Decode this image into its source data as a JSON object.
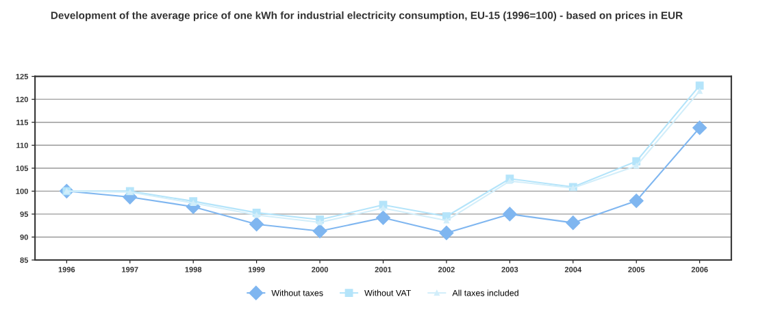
{
  "chart_data": {
    "type": "line",
    "title": "Development of the average price of one kWh for industrial electricity consumption, EU-15 (1996=100) - based on prices in EUR",
    "categories": [
      "1996",
      "1997",
      "1998",
      "1999",
      "2000",
      "2001",
      "2002",
      "2003",
      "2004",
      "2005",
      "2006"
    ],
    "series": [
      {
        "name": "Without taxes",
        "color": "#7fb6f0",
        "marker": "diamond",
        "values": [
          100,
          98.7,
          96.6,
          92.8,
          91.3,
          94.2,
          90.9,
          95.0,
          93.1,
          97.9,
          113.8
        ]
      },
      {
        "name": "Without VAT",
        "color": "#b4e4fa",
        "marker": "square",
        "values": [
          100,
          100,
          97.8,
          95.3,
          93.8,
          97.0,
          94.5,
          102.7,
          100.9,
          106.5,
          123.0
        ]
      },
      {
        "name": "All taxes included",
        "color": "#d2eefa",
        "marker": "triangle",
        "values": [
          100,
          99.8,
          97.4,
          94.8,
          93.2,
          96.3,
          93.6,
          102.2,
          100.7,
          105.5,
          121.8
        ]
      }
    ],
    "ylim": [
      85,
      125
    ],
    "yticks": [
      85,
      90,
      95,
      100,
      105,
      110,
      115,
      120,
      125
    ],
    "grid": "y",
    "legend": "bottom",
    "line_style": "solid"
  }
}
